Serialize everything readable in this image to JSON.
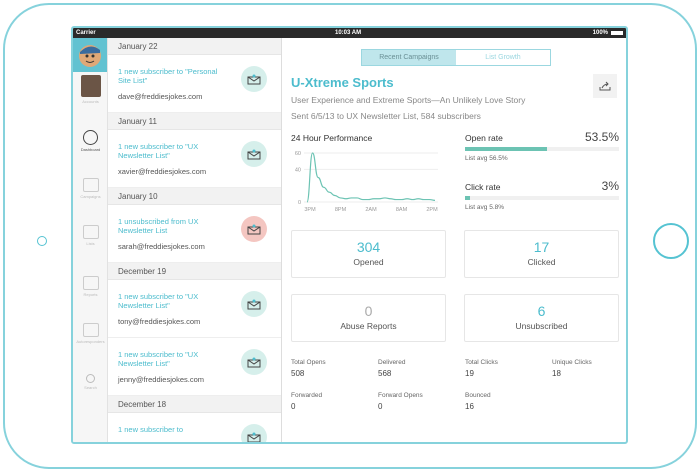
{
  "status": {
    "carrier": "Carrier",
    "time": "10:03 AM",
    "battery": "100%"
  },
  "sidebar": {
    "items": [
      {
        "label": "Accounts",
        "icon": "user-avatar-icon"
      },
      {
        "label": "Dashboard",
        "icon": "gauge-icon"
      },
      {
        "label": "Campaigns",
        "icon": "envelope-icon"
      },
      {
        "label": "Lists",
        "icon": "document-icon"
      },
      {
        "label": "Reports",
        "icon": "bar-chart-icon"
      },
      {
        "label": "Autoresponders",
        "icon": "monitor-icon"
      },
      {
        "label": "Search",
        "icon": "search-icon"
      }
    ]
  },
  "activity": [
    {
      "date": "January 22",
      "items": [
        {
          "title": "1 new subscriber to \"Personal Site List\"",
          "email": "dave@freddiesjokes.com",
          "type": "subscribe"
        }
      ]
    },
    {
      "date": "January 11",
      "items": [
        {
          "title": "1 new subscriber to \"UX Newsletter List\"",
          "email": "xavier@freddiesjokes.com",
          "type": "subscribe"
        }
      ]
    },
    {
      "date": "January 10",
      "items": [
        {
          "title": "1 unsubscribed from UX Newsletter List",
          "email": "sarah@freddiesjokes.com",
          "type": "unsubscribe"
        }
      ]
    },
    {
      "date": "December 19",
      "items": [
        {
          "title": "1 new subscriber to \"UX Newsletter List\"",
          "email": "tony@freddiesjokes.com",
          "type": "subscribe"
        },
        {
          "title": "1 new subscriber to \"UX Newsletter List\"",
          "email": "jenny@freddiesjokes.com",
          "type": "subscribe"
        }
      ]
    },
    {
      "date": "December 18",
      "items": [
        {
          "title": "1 new subscriber to",
          "email": "",
          "type": "subscribe"
        }
      ]
    }
  ],
  "main": {
    "tabs": [
      {
        "label": "Recent Campaigns",
        "active": true
      },
      {
        "label": "List Growth",
        "active": false
      }
    ],
    "title": "U-Xtreme Sports",
    "subtitle": "User Experience and Extreme Sports—An Unlikely Love Story",
    "sent": "Sent 6/5/13 to UX Newsletter List, 584 subscribers",
    "perf_title": "24 Hour Performance",
    "open_rate": {
      "label": "Open rate",
      "value": "53.5%",
      "fill": 53.5,
      "avg": "List avg 56.5%"
    },
    "click_rate": {
      "label": "Click rate",
      "value": "3%",
      "fill": 3,
      "avg": "List avg 5.8%"
    },
    "cards": [
      {
        "n": "304",
        "c": "Opened"
      },
      {
        "n": "17",
        "c": "Clicked"
      },
      {
        "n": "0",
        "c": "Abuse Reports"
      },
      {
        "n": "6",
        "c": "Unsubscribed"
      }
    ],
    "stats": [
      {
        "l": "Total Opens",
        "v": "508"
      },
      {
        "l": "Delivered",
        "v": "568"
      },
      {
        "l": "Total Clicks",
        "v": "19"
      },
      {
        "l": "Unique Clicks",
        "v": "18"
      },
      {
        "l": "Forwarded",
        "v": "0"
      },
      {
        "l": "Forward Opens",
        "v": "0"
      },
      {
        "l": "Bounced",
        "v": "16"
      }
    ],
    "page_count": 5,
    "page_active": 5
  },
  "chart_data": {
    "type": "line",
    "title": "24 Hour Performance",
    "yticks": [
      "60",
      "40",
      "0"
    ],
    "ylim": [
      0,
      60
    ],
    "xticks": [
      "3PM",
      "8PM",
      "2AM",
      "8AM",
      "2PM"
    ],
    "values": [
      0,
      60,
      30,
      18,
      12,
      8,
      5,
      4,
      5,
      5,
      3,
      3,
      4,
      4,
      5,
      4,
      3,
      3,
      4,
      3,
      4,
      3,
      3,
      2
    ],
    "color": "#6cc3b3"
  },
  "colors": {
    "accent": "#4cbccd",
    "sidebar_active": "#62c2d1",
    "bar": "#6cc3b3"
  }
}
